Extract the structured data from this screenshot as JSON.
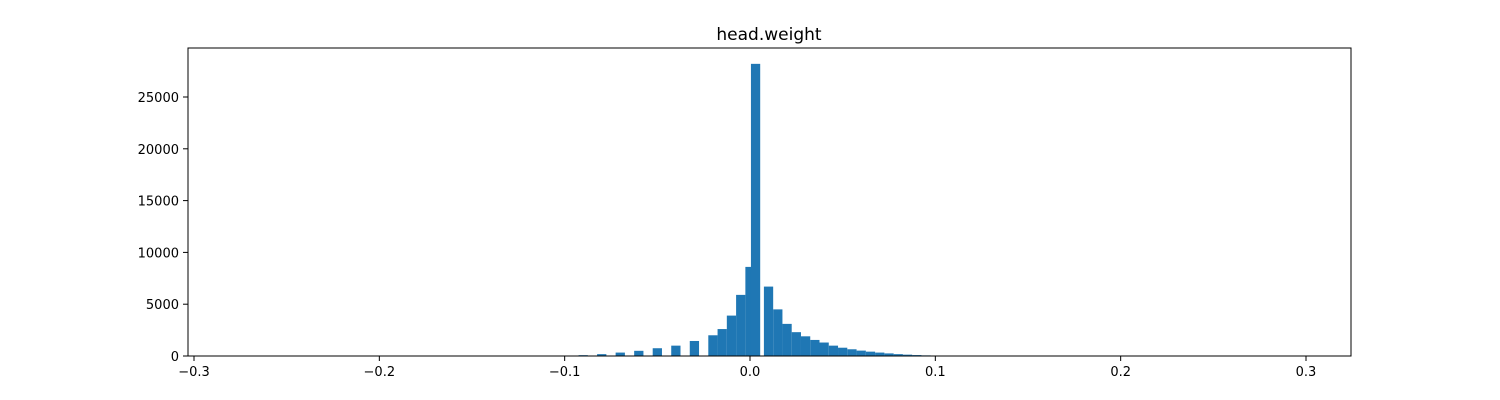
{
  "chart_data": {
    "type": "bar",
    "title": "head.weight",
    "xlabel": "",
    "ylabel": "",
    "xlim": [
      -0.3,
      0.3
    ],
    "ylim": [
      0,
      29000
    ],
    "bin_width": 0.01,
    "bar_color": "#1f77b4",
    "x_ticks": [
      -0.3,
      -0.2,
      -0.1,
      0.0,
      0.1,
      0.2,
      0.3
    ],
    "x_tick_labels": [
      "−0.3",
      "−0.2",
      "−0.1",
      "0.0",
      "0.1",
      "0.2",
      "0.3"
    ],
    "y_ticks": [
      0,
      5000,
      10000,
      15000,
      20000,
      25000
    ],
    "y_tick_labels": [
      "0",
      "5000",
      "10000",
      "15000",
      "20000",
      "25000"
    ],
    "bins": [
      {
        "x": -0.11,
        "count": 20
      },
      {
        "x": -0.1,
        "count": 40
      },
      {
        "x": -0.09,
        "count": 80
      },
      {
        "x": -0.08,
        "count": 180
      },
      {
        "x": -0.07,
        "count": 330
      },
      {
        "x": -0.06,
        "count": 500
      },
      {
        "x": -0.05,
        "count": 750
      },
      {
        "x": -0.04,
        "count": 1000
      },
      {
        "x": -0.03,
        "count": 1450
      },
      {
        "x": -0.02,
        "count": 2000
      },
      {
        "x": -0.015,
        "count": 2600
      },
      {
        "x": -0.01,
        "count": 3900
      },
      {
        "x": -0.005,
        "count": 5900
      },
      {
        "x": 0.0,
        "count": 8600
      },
      {
        "x": 0.003,
        "count": 28200
      },
      {
        "x": 0.01,
        "count": 6700
      },
      {
        "x": 0.015,
        "count": 4500
      },
      {
        "x": 0.02,
        "count": 3100
      },
      {
        "x": 0.025,
        "count": 2300
      },
      {
        "x": 0.03,
        "count": 1900
      },
      {
        "x": 0.035,
        "count": 1550
      },
      {
        "x": 0.04,
        "count": 1300
      },
      {
        "x": 0.045,
        "count": 1000
      },
      {
        "x": 0.05,
        "count": 800
      },
      {
        "x": 0.055,
        "count": 650
      },
      {
        "x": 0.06,
        "count": 520
      },
      {
        "x": 0.065,
        "count": 420
      },
      {
        "x": 0.07,
        "count": 330
      },
      {
        "x": 0.075,
        "count": 250
      },
      {
        "x": 0.08,
        "count": 180
      },
      {
        "x": 0.085,
        "count": 130
      },
      {
        "x": 0.09,
        "count": 90
      },
      {
        "x": 0.095,
        "count": 60
      },
      {
        "x": 0.1,
        "count": 40
      },
      {
        "x": 0.105,
        "count": 25
      },
      {
        "x": 0.11,
        "count": 15
      },
      {
        "x": 0.115,
        "count": 8
      }
    ]
  }
}
